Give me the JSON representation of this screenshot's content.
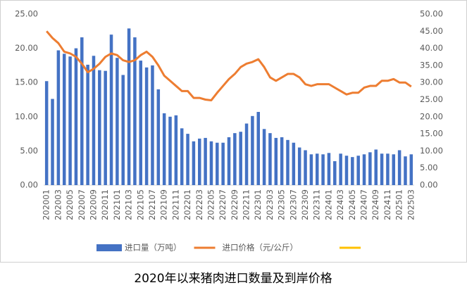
{
  "chart_data": {
    "type": "bar_line",
    "title": "2020年以来猪肉进口数量及到岸价格",
    "categories": [
      "202001",
      null,
      "202003",
      null,
      "202005",
      null,
      "202007",
      null,
      "202009",
      null,
      "202011",
      null,
      "202101",
      null,
      "202103",
      null,
      "202105",
      null,
      "202107",
      null,
      "202109",
      null,
      "202111",
      null,
      "202201",
      null,
      "202203",
      null,
      "202205",
      null,
      "202207",
      null,
      "202209",
      null,
      "202211",
      null,
      "202301",
      null,
      "202303",
      null,
      "202305",
      null,
      "202307",
      null,
      "202309",
      null,
      "202311",
      null,
      "202401",
      null,
      "202403",
      null,
      "202405",
      null,
      "202407",
      null,
      "202409",
      null,
      "202411",
      null,
      "202501",
      null,
      "202503"
    ],
    "series": [
      {
        "name": "进口量（万吨）",
        "type": "bar",
        "color": "#4472c4",
        "axis": "y",
        "values": [
          15.2,
          12.6,
          19.7,
          19.2,
          18.8,
          20.0,
          21.6,
          17.6,
          18.9,
          16.8,
          16.7,
          22.0,
          18.6,
          16.1,
          22.9,
          21.6,
          18.2,
          17.2,
          17.5,
          14.0,
          10.5,
          10.0,
          10.2,
          8.3,
          7.5,
          6.4,
          6.8,
          6.9,
          6.4,
          6.2,
          6.2,
          7.0,
          7.6,
          7.8,
          9.0,
          10.1,
          10.7,
          8.2,
          7.6,
          6.9,
          7.0,
          6.6,
          6.2,
          5.5,
          5.1,
          4.5,
          4.6,
          4.5,
          4.7,
          3.5,
          4.6,
          4.3,
          4.1,
          4.3,
          4.5,
          4.8,
          5.2,
          4.6,
          4.6,
          4.5,
          5.1,
          4.2,
          4.5
        ]
      },
      {
        "name": "进口价格（元/公斤）",
        "type": "line",
        "color": "#ed7d31",
        "axis": "y2",
        "values": [
          45,
          43,
          41.5,
          39,
          38.5,
          37.5,
          35.5,
          33,
          34,
          35.5,
          37.5,
          38.5,
          38,
          36.5,
          36,
          36.5,
          38,
          39,
          37.5,
          35,
          32,
          30.5,
          29,
          27.5,
          27.5,
          25.5,
          25.5,
          25,
          24.8,
          27,
          29,
          31,
          32.5,
          34.5,
          35.5,
          36,
          36.8,
          34.5,
          31.5,
          30.5,
          31.5,
          32.5,
          32.5,
          31.5,
          29.5,
          29,
          29.5,
          29.5,
          29.5,
          28.5,
          27.5,
          26.5,
          27,
          27,
          28.5,
          29,
          29,
          30.5,
          30.5,
          31,
          30,
          30,
          28.8
        ]
      }
    ],
    "ylim": [
      0,
      25
    ],
    "yticks": [
      {
        "value": 0,
        "label": "0.00"
      },
      {
        "value": 5,
        "label": "5.00"
      },
      {
        "value": 10,
        "label": "10.00"
      },
      {
        "value": 15,
        "label": "15.00"
      },
      {
        "value": 20,
        "label": "20.00"
      },
      {
        "value": 25,
        "label": "25.00"
      }
    ],
    "y2lim": [
      0,
      50
    ],
    "y2ticks": [
      {
        "value": 0,
        "label": "0.00"
      },
      {
        "value": 5,
        "label": "5.00"
      },
      {
        "value": 10,
        "label": "10.00"
      },
      {
        "value": 15,
        "label": "15.00"
      },
      {
        "value": 20,
        "label": "20.00"
      },
      {
        "value": 25,
        "label": "25.00"
      },
      {
        "value": 30,
        "label": "30.00"
      },
      {
        "value": 35,
        "label": "35.00"
      },
      {
        "value": 40,
        "label": "40.00"
      },
      {
        "value": 45,
        "label": "45.00"
      },
      {
        "value": 50,
        "label": "50.00"
      }
    ],
    "legend": "bottom"
  }
}
